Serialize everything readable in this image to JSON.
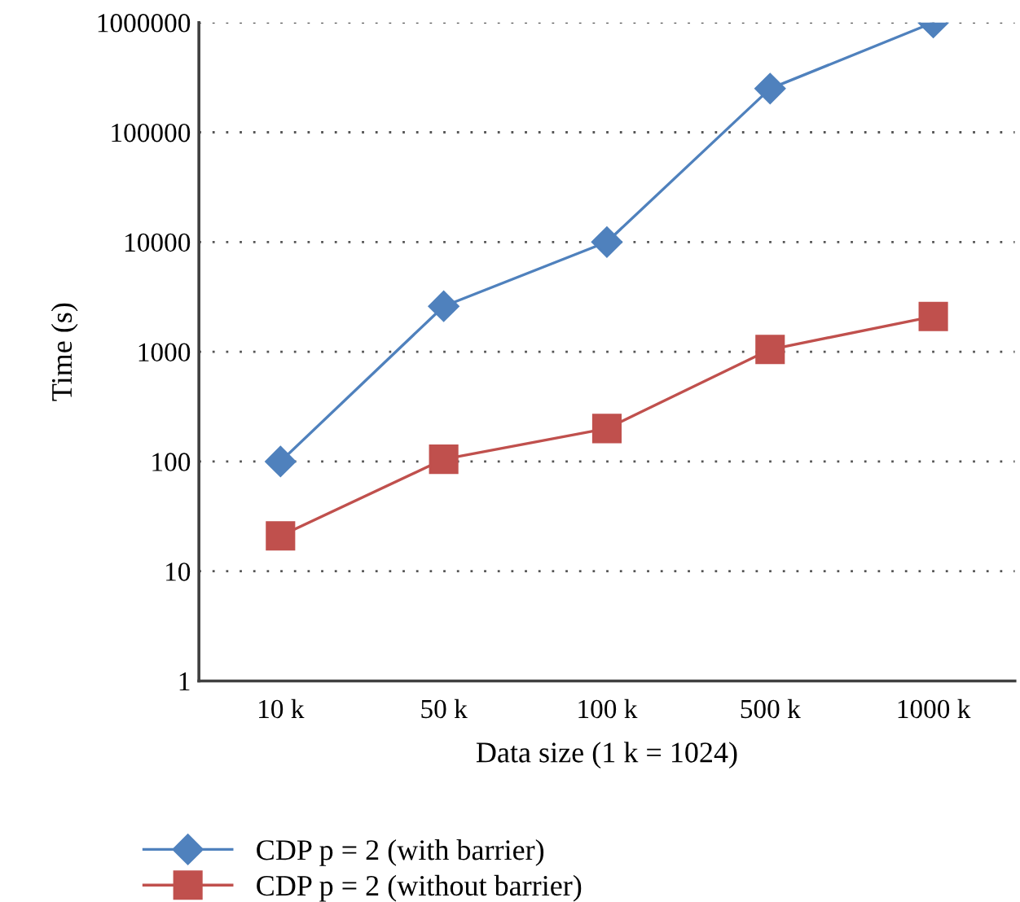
{
  "chart_data": {
    "type": "line",
    "xlabel": "Data size (1 k = 1024)",
    "ylabel": "Time (s)",
    "categories": [
      "10 k",
      "50 k",
      "100 k",
      "500 k",
      "1000 k"
    ],
    "series": [
      {
        "name": "CDP p = 2 (with barrier)",
        "color": "#4f81bd",
        "marker": "diamond",
        "values": [
          100,
          2600,
          10000,
          250000,
          1000000
        ]
      },
      {
        "name": "CDP p = 2 (without barrier)",
        "color": "#c0504d",
        "marker": "square",
        "values": [
          21,
          105,
          200,
          1050,
          2100
        ]
      }
    ],
    "log": "y",
    "ylim": [
      1,
      1000000
    ],
    "yticks": [
      1,
      10,
      100,
      1000,
      10000,
      100000,
      1000000
    ],
    "grid": "y",
    "legend": "bottom",
    "line_style": "solid"
  }
}
